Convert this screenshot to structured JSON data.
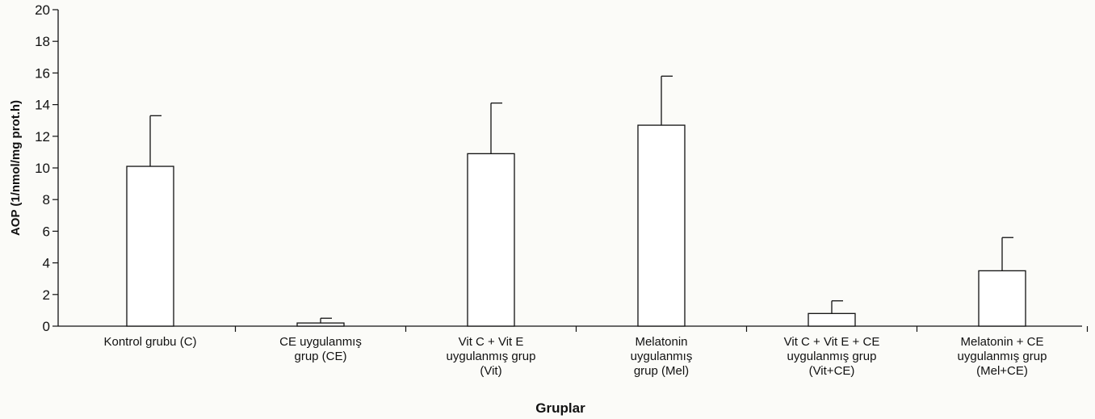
{
  "chart_data": {
    "type": "bar",
    "title": "",
    "xlabel": "Gruplar",
    "ylabel": "AOP (1/nmol/mg prot.h)",
    "ylim": [
      0,
      20
    ],
    "yticks": [
      0,
      2,
      4,
      6,
      8,
      10,
      12,
      14,
      16,
      18,
      20
    ],
    "categories": [
      [
        "Kontrol grubu (C)"
      ],
      [
        "CE uygulanmış",
        "grup (CE)"
      ],
      [
        "Vit C + Vit E",
        "uygulanmış grup",
        "(Vit)"
      ],
      [
        "Melatonin",
        "uygulanmış",
        "grup (Mel)"
      ],
      [
        "Vit C + Vit E + CE",
        "uygulanmış grup",
        "(Vit+CE)"
      ],
      [
        "Melatonin + CE",
        "uygulanmış grup",
        "(Mel+CE)"
      ]
    ],
    "values": [
      10.1,
      0.2,
      10.9,
      12.7,
      0.8,
      3.5
    ],
    "error": [
      3.2,
      0.3,
      3.2,
      3.1,
      0.8,
      2.1
    ],
    "grid": false,
    "legend": "none",
    "colors": {
      "bar_fill": "#ffffff",
      "stroke": "#111111"
    }
  }
}
